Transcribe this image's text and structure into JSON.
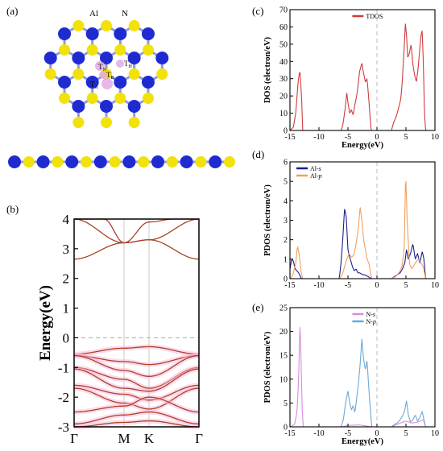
{
  "figure": {
    "panel_labels": {
      "a": "(a)",
      "b": "(b)",
      "c": "(c)",
      "d": "(d)",
      "e": "(e)"
    },
    "structure": {
      "atom_labels": {
        "al": "Al",
        "n": "N"
      },
      "site_labels": {
        "tn": "T",
        "tn_sub": "N",
        "th": "T",
        "th_sub": "H",
        "tb": "T",
        "tb_sub": "B",
        "ta": "T",
        "ta_sub": "A"
      },
      "colors": {
        "al": "#1f2bd1",
        "n": "#f2e20a",
        "bond": "#8e9bd8",
        "site": "#e3a9e8"
      }
    }
  },
  "chart_data": [
    {
      "id": "b",
      "type": "line",
      "title": "",
      "xlabel": "",
      "ylabel": "Energy(eV)",
      "k_labels": [
        "Γ",
        "M",
        "K",
        "Γ"
      ],
      "k_positions": [
        0,
        1,
        1.5,
        2.5
      ],
      "ylim": [
        -3,
        4
      ],
      "yticks": [
        "-3",
        "-2",
        "-1",
        "0",
        "1",
        "2",
        "3",
        "4"
      ],
      "fermi_level": 0,
      "colors": {
        "band": "#a8412a",
        "glow": "#ffb8d6",
        "fermi": "#aaaaaa"
      },
      "bands": {
        "conduction": [
          {
            "x": [
              0,
              1,
              1.5,
              2.5
            ],
            "y": [
              2.65,
              3.2,
              3.3,
              2.65
            ]
          },
          {
            "x": [
              0,
              1,
              1.5,
              2.5
            ],
            "y": [
              4.0,
              3.2,
              3.3,
              4.0
            ]
          },
          {
            "x": [
              0,
              0.6,
              1.0,
              1.5,
              2.0,
              2.5
            ],
            "y": [
              4.0,
              4.0,
              3.2,
              3.9,
              4.0,
              4.0
            ]
          }
        ],
        "valence": [
          {
            "x": [
              0,
              1,
              1.5,
              2.5
            ],
            "y": [
              -0.55,
              -0.35,
              -0.3,
              -0.55
            ]
          },
          {
            "x": [
              0,
              1,
              1.5,
              2.5
            ],
            "y": [
              -0.6,
              -0.8,
              -0.9,
              -0.6
            ]
          },
          {
            "x": [
              0,
              1,
              1.5,
              2.5
            ],
            "y": [
              -0.6,
              -1.1,
              -1.3,
              -0.6
            ]
          },
          {
            "x": [
              0,
              1,
              1.5,
              2.5
            ],
            "y": [
              -1.0,
              -1.4,
              -1.7,
              -1.0
            ]
          },
          {
            "x": [
              0,
              1,
              1.5,
              2.5
            ],
            "y": [
              -1.05,
              -1.7,
              -1.8,
              -1.05
            ]
          },
          {
            "x": [
              0,
              1,
              1.5,
              2.5
            ],
            "y": [
              -1.6,
              -1.9,
              -2.1,
              -1.6
            ]
          },
          {
            "x": [
              0,
              1,
              1.5,
              2.5
            ],
            "y": [
              -1.7,
              -2.2,
              -2.4,
              -1.7
            ]
          },
          {
            "x": [
              0,
              1,
              1.5,
              2.5
            ],
            "y": [
              -2.5,
              -2.3,
              -2.0,
              -2.5
            ]
          },
          {
            "x": [
              0,
              1,
              1.5,
              2.5
            ],
            "y": [
              -2.9,
              -2.6,
              -2.5,
              -2.9
            ]
          },
          {
            "x": [
              0,
              1,
              1.5,
              2.5
            ],
            "y": [
              -3.0,
              -2.85,
              -2.8,
              -3.0
            ]
          }
        ]
      }
    },
    {
      "id": "c",
      "type": "line",
      "title": "",
      "xlabel": "Energy(eV)",
      "ylabel": "DOS (electron/eV)",
      "xlim": [
        -15,
        10
      ],
      "ylim": [
        0,
        70
      ],
      "xticks": [
        "-15",
        "-10",
        "-5",
        "0",
        "5",
        "10"
      ],
      "yticks": [
        "0",
        "10",
        "20",
        "30",
        "40",
        "50",
        "60",
        "70"
      ],
      "legend": {
        "placement": "top-center"
      },
      "series": [
        {
          "name": "TDOS",
          "color": "#d13b3b",
          "x": [
            -15,
            -14.4,
            -14.0,
            -13.6,
            -13.3,
            -13.0,
            -12.8,
            -6.2,
            -5.9,
            -5.5,
            -5.2,
            -5.0,
            -4.7,
            -4.4,
            -4.1,
            -3.8,
            -3.4,
            -3.0,
            -2.6,
            -2.3,
            -2.0,
            -1.7,
            -1.4,
            -1.2,
            -1.0,
            2.5,
            2.9,
            3.2,
            3.5,
            3.8,
            4.1,
            4.4,
            4.7,
            4.9,
            5.1,
            5.3,
            5.6,
            5.9,
            6.2,
            6.5,
            6.8,
            7.1,
            7.4,
            7.6,
            7.8,
            8.0,
            8.2,
            8.4
          ],
          "y": [
            0,
            2,
            10,
            28,
            35,
            20,
            0,
            0,
            3,
            12,
            22,
            16,
            10,
            12,
            9,
            15,
            22,
            34,
            39,
            33,
            28,
            30,
            18,
            8,
            0,
            0,
            5,
            7,
            10,
            14,
            18,
            30,
            48,
            62,
            55,
            42,
            45,
            50,
            38,
            32,
            28,
            36,
            48,
            55,
            58,
            38,
            10,
            0
          ]
        }
      ]
    },
    {
      "id": "d",
      "type": "line",
      "title": "",
      "xlabel": "",
      "ylabel": "PDOS (electron/eV)",
      "xlim": [
        -15,
        10
      ],
      "ylim": [
        0,
        6
      ],
      "xticks": [
        "-15",
        "-10",
        "-5",
        "0",
        "5",
        "10"
      ],
      "yticks": [
        "0",
        "1",
        "2",
        "3",
        "4",
        "5",
        "6"
      ],
      "legend": {
        "placement": "top-left"
      },
      "series": [
        {
          "name": "Al-s",
          "color": "#1a1f8c",
          "x": [
            -15,
            -14.7,
            -14.4,
            -14.1,
            -13.8,
            -13.5,
            -13.2,
            -13.0,
            -6.5,
            -6.2,
            -5.9,
            -5.6,
            -5.3,
            -5.0,
            -4.8,
            -4.5,
            -4.2,
            -3.9,
            -3.6,
            -3.3,
            -3.0,
            -2.7,
            -2.4,
            -2.1,
            -1.8,
            -1.5,
            -1.2,
            -1.0,
            2.5,
            3.0,
            3.5,
            4.0,
            4.4,
            4.8,
            5.1,
            5.4,
            5.8,
            6.2,
            6.6,
            7.0,
            7.4,
            7.8,
            8.1,
            8.4
          ],
          "y": [
            0.5,
            1.0,
            0.9,
            0.5,
            0.4,
            0.3,
            0.1,
            0,
            0,
            0.8,
            2.0,
            3.6,
            3.2,
            1.5,
            1.2,
            0.9,
            0.6,
            0.4,
            0.5,
            0.3,
            0.3,
            0.25,
            0.2,
            0.2,
            0.15,
            0.1,
            0.05,
            0,
            0,
            0.1,
            0.2,
            0.3,
            0.5,
            0.8,
            1.5,
            1.0,
            1.3,
            1.8,
            1.0,
            1.3,
            0.8,
            1.4,
            1.0,
            0
          ]
        },
        {
          "name": "Al-p",
          "color": "#f0a060",
          "x": [
            -15,
            -14.5,
            -14.0,
            -13.7,
            -13.4,
            -13.1,
            -12.8,
            -6.5,
            -6.0,
            -5.6,
            -5.2,
            -4.8,
            -4.4,
            -4.0,
            -3.6,
            -3.2,
            -2.9,
            -2.6,
            -2.3,
            -2.0,
            -1.7,
            -1.4,
            -1.1,
            -0.9,
            2.5,
            3.2,
            3.8,
            4.3,
            4.7,
            4.95,
            5.2,
            5.6,
            6.0,
            6.4,
            6.8,
            7.2,
            7.6,
            8.0,
            8.4
          ],
          "y": [
            0,
            0.2,
            0.8,
            1.7,
            1.2,
            0.4,
            0,
            0,
            0.2,
            0.6,
            1.0,
            1.3,
            1.1,
            1.2,
            1.8,
            2.6,
            3.7,
            3.0,
            2.0,
            1.5,
            1.0,
            0.8,
            0.3,
            0,
            0,
            0.1,
            0.3,
            0.6,
            1.5,
            5.5,
            3.0,
            0.8,
            0.5,
            0.7,
            0.9,
            1.0,
            0.8,
            0.6,
            0
          ]
        }
      ]
    },
    {
      "id": "e",
      "type": "line",
      "title": "",
      "xlabel": "Energy(eV)",
      "ylabel": "PDOS (electron/eV)",
      "xlim": [
        -15,
        10
      ],
      "ylim": [
        0,
        25
      ],
      "xticks": [
        "-15",
        "-10",
        "-5",
        "0",
        "5",
        "10"
      ],
      "yticks": [
        "0",
        "5",
        "10",
        "15",
        "20",
        "25"
      ],
      "legend": {
        "placement": "top-center"
      },
      "series": [
        {
          "name": "N-s",
          "color": "#d88ce0",
          "x": [
            -15,
            -14.2,
            -13.8,
            -13.5,
            -13.3,
            -13.1,
            -12.9,
            -12.7,
            -6.0,
            -5.0,
            -3.0,
            -1.0,
            2.5,
            4.0,
            5.0,
            6.0,
            7.0,
            8.0,
            8.4
          ],
          "y": [
            0,
            0.5,
            3,
            10,
            22,
            15,
            4,
            0,
            0,
            0.3,
            0.4,
            0,
            0,
            0.8,
            1.2,
            0.8,
            1.0,
            1.5,
            0
          ]
        },
        {
          "name": "N-p",
          "color": "#6aaad8",
          "x": [
            -15,
            -13.5,
            -12.7,
            -6.2,
            -5.8,
            -5.4,
            -5.0,
            -4.7,
            -4.4,
            -4.1,
            -3.8,
            -3.5,
            -3.2,
            -2.9,
            -2.6,
            -2.3,
            -2.0,
            -1.7,
            -1.4,
            -1.1,
            -0.9,
            2.5,
            3.0,
            3.5,
            4.0,
            4.5,
            4.8,
            5.1,
            5.4,
            5.8,
            6.2,
            6.6,
            7.0,
            7.4,
            7.8,
            8.1,
            8.4
          ],
          "y": [
            0,
            0,
            0,
            0,
            1.5,
            5.0,
            7.5,
            5.0,
            3.5,
            4.5,
            3.0,
            6.0,
            9.0,
            13.0,
            18.5,
            14.0,
            12.0,
            14.0,
            8.0,
            3.0,
            0,
            0,
            0.5,
            0.8,
            1.5,
            2.5,
            3.5,
            5.5,
            2.5,
            1.0,
            1.5,
            2.5,
            1.2,
            2.0,
            3.2,
            1.5,
            0
          ]
        }
      ]
    }
  ]
}
